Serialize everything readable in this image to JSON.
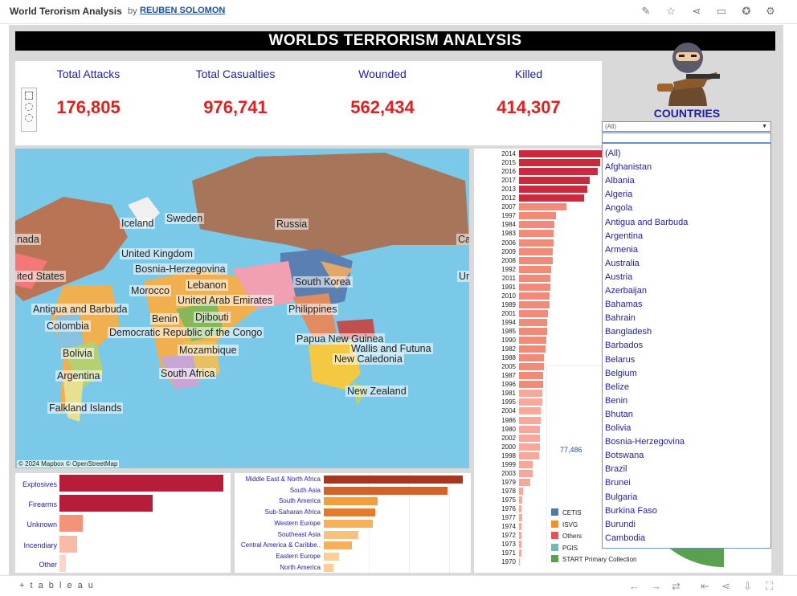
{
  "header": {
    "app_title": "World Terorism Analysis",
    "by": "by",
    "author": "REUBEN SOLOMON",
    "icons": [
      "edit-icon",
      "star-icon",
      "share-icon",
      "comment-icon",
      "badge-icon",
      "settings-icon"
    ]
  },
  "dashboard": {
    "title": "WORLDS TERRORISM ANALYSIS",
    "countries_title": "COUNTRIES"
  },
  "kpis": [
    {
      "label": "Total Attacks",
      "value": "176,805"
    },
    {
      "label": "Total Casualties",
      "value": "976,741"
    },
    {
      "label": "Wounded",
      "value": "562,434"
    },
    {
      "label": "Killed",
      "value": "414,307"
    }
  ],
  "map": {
    "labels": [
      "Iceland",
      "Sweden",
      "Russia",
      "nada",
      "Ca",
      "United Kingdom",
      "Bosnia-Herzegovina",
      "ited States",
      "Un",
      "Lebanon",
      "South Korea",
      "Morocco",
      "United Arab Emirates",
      "Antigua and Barbuda",
      "Philippines",
      "Benin",
      "Djibouti",
      "Colombia",
      "Democratic Republic of the Congo",
      "Papua New Guinea",
      "Wallis and Futuna",
      "Bolivia",
      "Mozambique",
      "New Caledonia",
      "Argentina",
      "South Africa",
      "New Zealand",
      "Falkland Islands"
    ],
    "credit": "© 2024 Mapbox © OpenStreetMap"
  },
  "country_filter": {
    "selected": "(All)",
    "items": [
      "(All)",
      "Afghanistan",
      "Albania",
      "Algeria",
      "Angola",
      "Antigua and Barbuda",
      "Argentina",
      "Armenia",
      "Australia",
      "Austria",
      "Azerbaijan",
      "Bahamas",
      "Bahrain",
      "Bangladesh",
      "Barbados",
      "Belarus",
      "Belgium",
      "Belize",
      "Benin",
      "Bhutan",
      "Bolivia",
      "Bosnia-Herzegovina",
      "Botswana",
      "Brazil",
      "Brunei",
      "Bulgaria",
      "Burkina Faso",
      "Burundi",
      "Cambodia"
    ]
  },
  "attack_types": {
    "categories": [
      "Explosives",
      "Firearms",
      "Unknown",
      "Incendiary",
      "Other"
    ],
    "values": [
      1.0,
      0.57,
      0.14,
      0.11,
      0.04
    ],
    "colors": [
      "#b71c3a",
      "#b71c3a",
      "#f5937a",
      "#f9bba8",
      "#fcd4c8"
    ]
  },
  "regions": {
    "categories": [
      "Middle East & North Africa",
      "South Asia",
      "South America",
      "Sub-Saharan Africa",
      "Western Europe",
      "Southeast Asia",
      "Central America & Caribbe..",
      "Eastern Europe",
      "North America"
    ],
    "values": [
      1.0,
      0.89,
      0.39,
      0.37,
      0.35,
      0.25,
      0.2,
      0.11,
      0.07
    ],
    "colors": [
      "#a6361c",
      "#d4602a",
      "#f59c3c",
      "#e87a2c",
      "#f7b05a",
      "#f9c080",
      "#f7b05a",
      "#fbcf94",
      "#fbcf94"
    ]
  },
  "years": {
    "labels": [
      "2014",
      "2015",
      "2016",
      "2017",
      "2013",
      "2012",
      "2007",
      "1997",
      "1984",
      "1983",
      "2006",
      "2009",
      "2008",
      "1992",
      "2011",
      "1991",
      "2010",
      "1989",
      "2001",
      "1994",
      "1985",
      "1990",
      "1982",
      "1988",
      "2005",
      "1987",
      "1996",
      "1981",
      "1995",
      "2004",
      "1986",
      "1980",
      "2002",
      "2000",
      "1998",
      "1999",
      "2003",
      "1979",
      "1978",
      "1975",
      "1976",
      "1977",
      "1974",
      "1972",
      "1973",
      "1971",
      "1970"
    ],
    "values": [
      0.82,
      0.78,
      0.75,
      0.68,
      0.65,
      0.62,
      0.45,
      0.35,
      0.34,
      0.33,
      0.33,
      0.32,
      0.32,
      0.31,
      0.3,
      0.3,
      0.29,
      0.29,
      0.28,
      0.27,
      0.27,
      0.26,
      0.25,
      0.24,
      0.24,
      0.23,
      0.23,
      0.22,
      0.22,
      0.21,
      0.21,
      0.2,
      0.2,
      0.2,
      0.19,
      0.13,
      0.13,
      0.11,
      0.04,
      0.03,
      0.02,
      0.03,
      0.02,
      0.02,
      0.02,
      0.02,
      0.01
    ]
  },
  "pie": {
    "value_label": "77,486",
    "legend": [
      {
        "name": "CETIS",
        "color": "#4e79a7"
      },
      {
        "name": "ISVG",
        "color": "#f28e2b"
      },
      {
        "name": "Others",
        "color": "#e15759"
      },
      {
        "name": "PGIS",
        "color": "#76b7b2"
      },
      {
        "name": "START Primary Collection",
        "color": "#59a14f"
      }
    ]
  },
  "footer": {
    "logo": "+ t a b l e a u"
  }
}
